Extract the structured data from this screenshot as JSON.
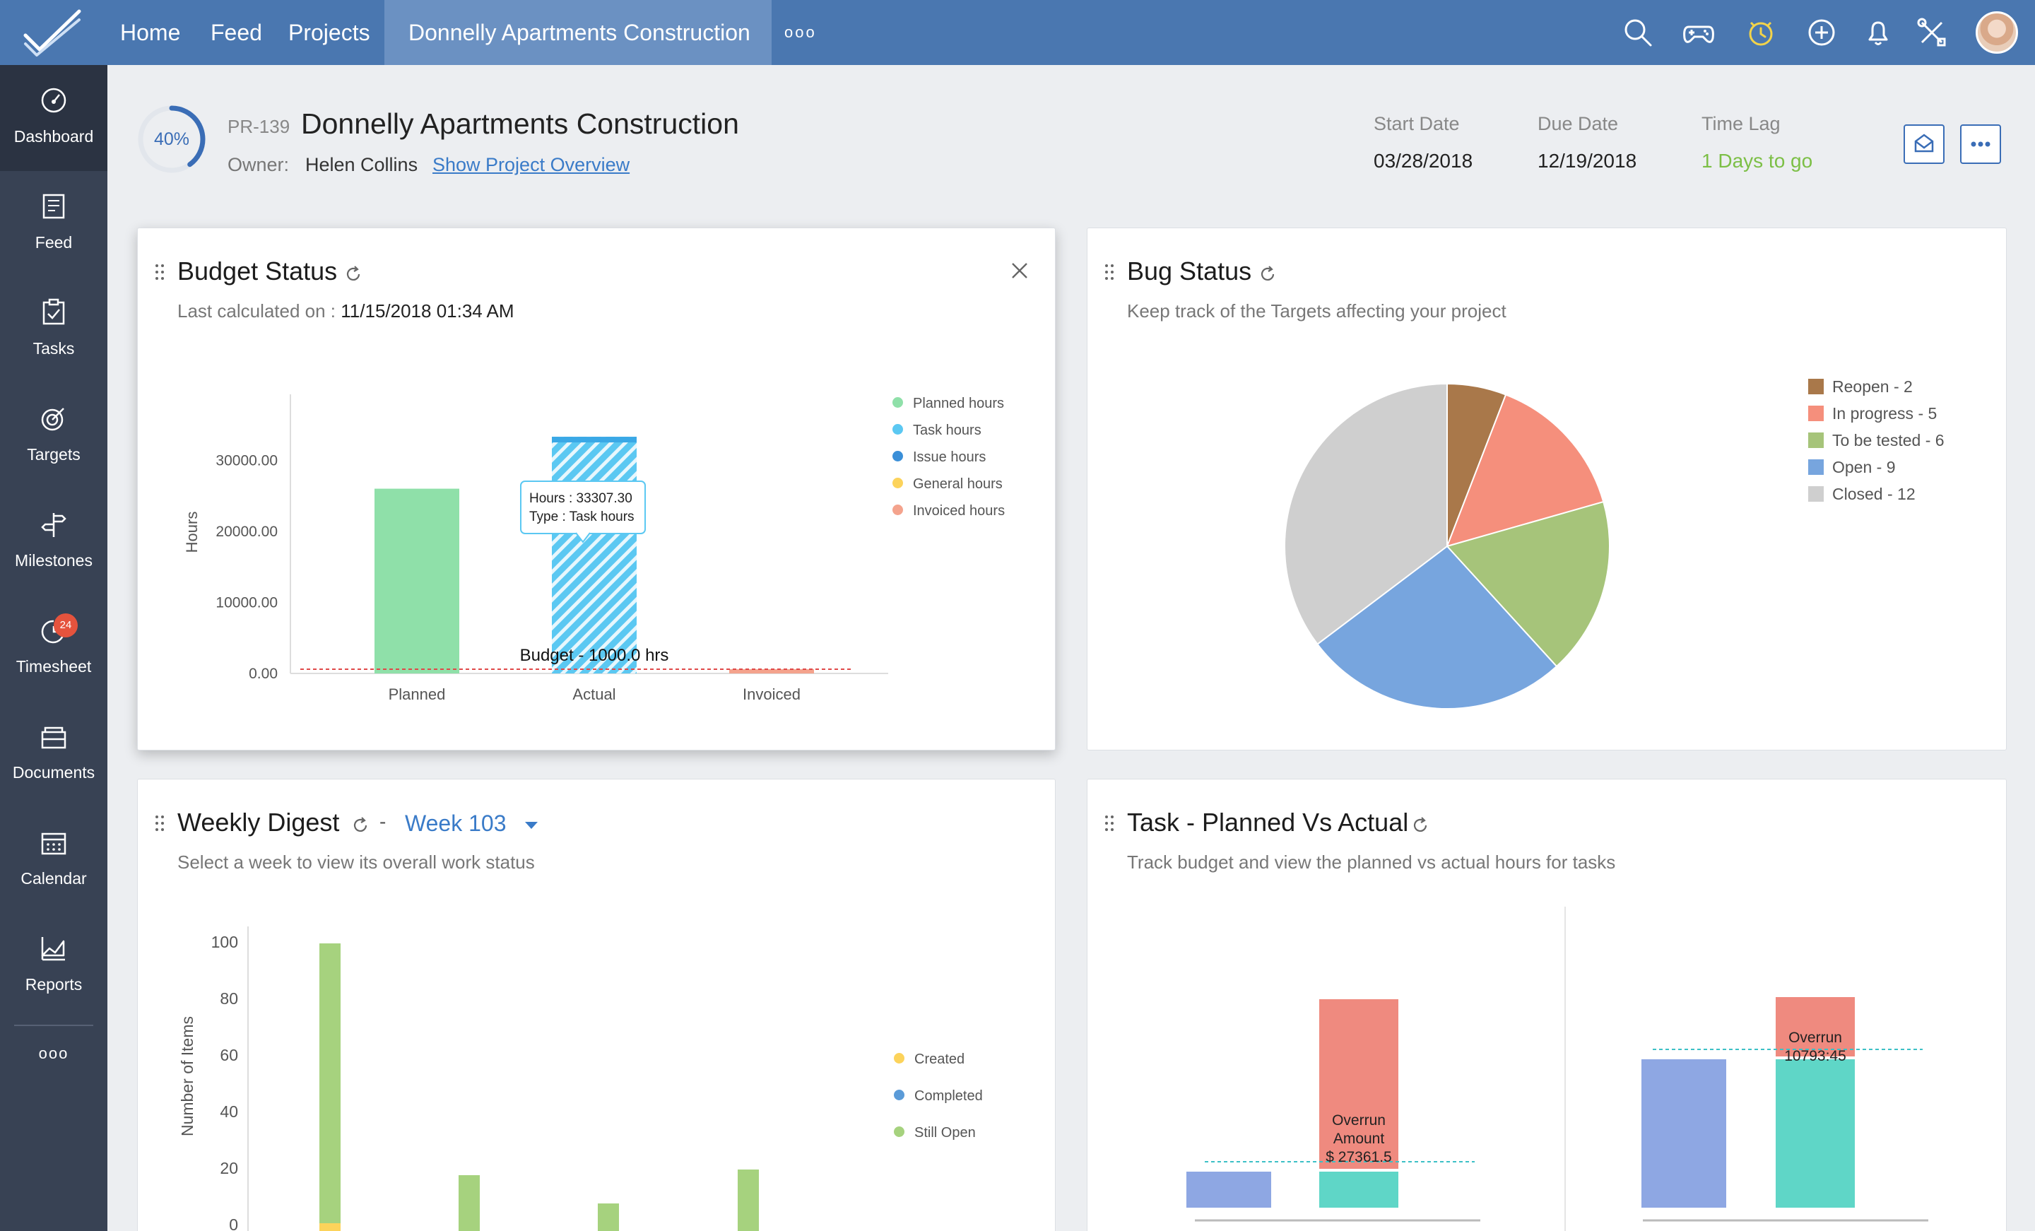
{
  "nav": {
    "home": "Home",
    "feed": "Feed",
    "projects": "Projects",
    "current_project": "Donnelly Apartments Construction",
    "more": "ooo"
  },
  "sidebar": {
    "items": [
      {
        "label": "Dashboard",
        "icon": "dashboard-icon"
      },
      {
        "label": "Feed",
        "icon": "feed-icon"
      },
      {
        "label": "Tasks",
        "icon": "tasks-icon"
      },
      {
        "label": "Targets",
        "icon": "targets-icon"
      },
      {
        "label": "Milestones",
        "icon": "milestones-icon"
      },
      {
        "label": "Timesheet",
        "icon": "timesheet-icon",
        "badge": "24"
      },
      {
        "label": "Documents",
        "icon": "documents-icon"
      },
      {
        "label": "Calendar",
        "icon": "calendar-icon"
      },
      {
        "label": "Reports",
        "icon": "reports-icon"
      }
    ],
    "more": "ooo"
  },
  "project": {
    "progress": "40%",
    "progress_value": 0.4,
    "id": "PR-139",
    "title": "Donnelly Apartments Construction",
    "owner_label": "Owner:",
    "owner": "Helen Collins",
    "overview_link": "Show Project Overview",
    "start_label": "Start Date",
    "start_date": "03/28/2018",
    "due_label": "Due Date",
    "due_date": "12/19/2018",
    "lag_label": "Time Lag",
    "lag_value": "1 Days to go"
  },
  "colors": {
    "accent": "#4a77b0",
    "sidebar": "#384254",
    "link": "#3a7bc8",
    "green": "#7cbf46"
  },
  "budget": {
    "title": "Budget Status",
    "calc_label": "Last calculated on :",
    "calc_value": "11/15/2018 01:34 AM",
    "chart_data": {
      "type": "bar",
      "ylabel": "Hours",
      "categories": [
        "Planned",
        "Actual",
        "Invoiced"
      ],
      "yticks": [
        "30000.00",
        "20000.00",
        "10000.00",
        "0.00"
      ],
      "ylim": [
        0,
        36000
      ],
      "values": [
        26000,
        33307.3,
        600
      ],
      "budget_line": 1000,
      "budget_label": "Budget - 1000.0 hrs",
      "tooltip": {
        "line1": "Hours : 33307.30",
        "line2": "Type : Task hours"
      },
      "legend": [
        {
          "name": "Planned hours",
          "color": "#8fe0a9"
        },
        {
          "name": "Task hours",
          "color": "#5bc8f2"
        },
        {
          "name": "Issue hours",
          "color": "#3a8fd8"
        },
        {
          "name": "General hours",
          "color": "#fcd35b"
        },
        {
          "name": "Invoiced hours",
          "color": "#f4a38d"
        }
      ]
    }
  },
  "bug": {
    "title": "Bug Status",
    "subtitle": "Keep track of the Targets affecting your project",
    "chart_data": {
      "type": "pie",
      "slices": [
        {
          "name": "Reopen - 2",
          "value": 2,
          "color": "#a9784a"
        },
        {
          "name": "In progress - 5",
          "value": 5,
          "color": "#f58f7c"
        },
        {
          "name": "To be tested - 6",
          "value": 6,
          "color": "#a6c47a"
        },
        {
          "name": "Open - 9",
          "value": 9,
          "color": "#77a5de"
        },
        {
          "name": "Closed - 12",
          "value": 12,
          "color": "#cfcfcf"
        }
      ]
    }
  },
  "weekly": {
    "title": "Weekly Digest",
    "separator": "-",
    "week": "Week 103",
    "subtitle": "Select a week to view its overall work status",
    "chart_data": {
      "type": "bar",
      "ylabel": "Number of Items",
      "yticks": [
        "100",
        "80",
        "60",
        "40",
        "20",
        "0"
      ],
      "ylim": [
        0,
        100
      ],
      "series": [
        {
          "name": "Created",
          "color": "#fcd35b",
          "values": [
            3,
            0,
            0,
            0
          ]
        },
        {
          "name": "Completed",
          "color": "#5b9bd8",
          "values": [
            0,
            0,
            0,
            0
          ]
        },
        {
          "name": "Still Open",
          "color": "#a6d27e",
          "values": [
            99,
            20,
            10,
            22
          ]
        }
      ]
    }
  },
  "task": {
    "title": "Task - Planned Vs Actual",
    "subtitle": "Track budget and view the planned vs actual hours for tasks",
    "chart_data": [
      {
        "type": "bar",
        "overrun_label_1": "Overrun",
        "overrun_label_2": "Amount",
        "overrun_value": "$ 27361.5",
        "planned": 17,
        "actual_base": 17,
        "actual_overrun": 80
      },
      {
        "type": "bar",
        "overrun_label_1": "Overrun",
        "overrun_value": "10793:45",
        "planned": 70,
        "actual_base": 70,
        "actual_overrun": 28
      }
    ]
  }
}
